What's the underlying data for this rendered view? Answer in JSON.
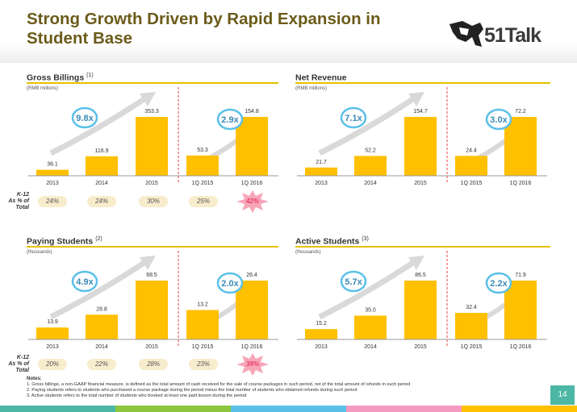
{
  "title": "Strong Growth Driven by Rapid Expansion in Student Base",
  "logo": "51Talk",
  "k12_label": [
    "K-12",
    "As % of",
    "Total"
  ],
  "panels": [
    {
      "title": "Gross Billings",
      "sup": "(1)",
      "unit": "(RMB millions)",
      "annual_multiplier": "9.8x",
      "quarter_multiplier": "2.9x",
      "k12": [
        "24%",
        "24%",
        "30%",
        "25%",
        "42%"
      ]
    },
    {
      "title": "Net Revenue",
      "sup": "",
      "unit": "(RMB millions)",
      "annual_multiplier": "7.1x",
      "quarter_multiplier": "3.0x",
      "k12": []
    },
    {
      "title": "Paying Students",
      "sup": "(2)",
      "unit": "(thousands)",
      "annual_multiplier": "4.9x",
      "quarter_multiplier": "2.0x",
      "k12": [
        "20%",
        "22%",
        "28%",
        "23%",
        "39%"
      ]
    },
    {
      "title": "Active Students",
      "sup": "(3)",
      "unit": "(thousands)",
      "annual_multiplier": "5.7x",
      "quarter_multiplier": "2.2x",
      "k12": []
    }
  ],
  "chart_data": [
    {
      "type": "bar",
      "title": "Gross Billings",
      "categories": [
        "2013",
        "2014",
        "2015",
        "1Q 2015",
        "1Q 2016"
      ],
      "values": [
        36.1,
        116.9,
        353.3,
        53.3,
        154.8
      ],
      "labels": [
        "36.1",
        "116.9",
        "353.3",
        "53.3",
        "154.8"
      ],
      "ylabel": "(RMB millions)",
      "color": "#ffc000"
    },
    {
      "type": "bar",
      "title": "Net Revenue",
      "categories": [
        "2013",
        "2014",
        "2015",
        "1Q 2015",
        "1Q 2016"
      ],
      "values": [
        21.7,
        52.2,
        154.7,
        24.4,
        72.2
      ],
      "labels": [
        "21.7",
        "52.2",
        "154.7",
        "24.4",
        "72.2"
      ],
      "ylabel": "(RMB millions)",
      "color": "#ffc000"
    },
    {
      "type": "bar",
      "title": "Paying Students",
      "categories": [
        "2013",
        "2014",
        "2015",
        "1Q 2015",
        "1Q 2016"
      ],
      "values": [
        13.9,
        28.8,
        68.5,
        13.2,
        26.4
      ],
      "labels": [
        "13.9",
        "28.8",
        "68.5",
        "13.2",
        "26.4"
      ],
      "ylabel": "(thousands)",
      "color": "#ffc000"
    },
    {
      "type": "bar",
      "title": "Active Students",
      "categories": [
        "2013",
        "2014",
        "2015",
        "1Q 2015",
        "1Q 2016"
      ],
      "values": [
        15.2,
        35.0,
        86.5,
        32.4,
        71.9
      ],
      "labels": [
        "15.2",
        "35.0",
        "86.5",
        "32.4",
        "71.9"
      ],
      "ylabel": "(thousands)",
      "color": "#ffc000"
    }
  ],
  "notes": {
    "heading": "Notes:",
    "lines": [
      "1. Gross billings, a non-GAAP financial measure, is defined as the total amount of cash received for the sale of course packages in such period, net of the total amount of refunds in such period",
      "2. Paying students refers to students who purchased a course package during the period minus the total number of students who obtained refunds during such period",
      "3. Active students refers to the total number of students who booked at least one paid lesson during the period"
    ]
  },
  "page_number": "14",
  "colors": {
    "bar": "#ffc000",
    "title": "#6b5b1a",
    "multiplier_circle": "#5bc0e8",
    "divider": "#e8463c",
    "star": "#f7a6b8"
  }
}
